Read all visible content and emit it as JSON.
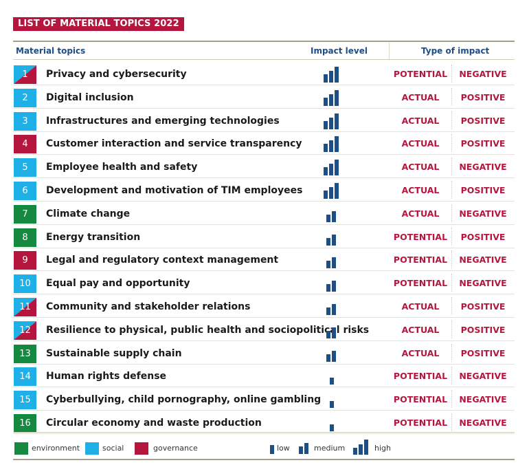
{
  "title": "LIST OF MATERIAL TOPICS 2022",
  "headers": {
    "topics": "Material topics",
    "impact_level": "Impact level",
    "type_of_impact": "Type of impact"
  },
  "colors": {
    "environment": "#15893f",
    "social": "#1eb0e6",
    "governance": "#b5163d",
    "accent_red": "#b5163d",
    "accent_blue": "#1e4e86"
  },
  "rows": [
    {
      "num": "1",
      "topic": "Privacy and cybersecurity",
      "category": "social/governance",
      "level": "high",
      "type1": "POTENTIAL",
      "type2": "NEGATIVE"
    },
    {
      "num": "2",
      "topic": "Digital inclusion",
      "category": "social",
      "level": "high",
      "type1": "ACTUAL",
      "type2": "POSITIVE"
    },
    {
      "num": "3",
      "topic": "Infrastructures and emerging technologies",
      "category": "social",
      "level": "high",
      "type1": "ACTUAL",
      "type2": "POSITIVE"
    },
    {
      "num": "4",
      "topic": "Customer interaction and service transparency",
      "category": "governance",
      "level": "high",
      "type1": "ACTUAL",
      "type2": "POSITIVE"
    },
    {
      "num": "5",
      "topic": "Employee health and safety",
      "category": "social",
      "level": "high",
      "type1": "ACTUAL",
      "type2": "NEGATIVE"
    },
    {
      "num": "6",
      "topic": "Development and motivation of TIM employees",
      "category": "social",
      "level": "high",
      "type1": "ACTUAL",
      "type2": "POSITIVE"
    },
    {
      "num": "7",
      "topic": "Climate change",
      "category": "environment",
      "level": "medium",
      "type1": "ACTUAL",
      "type2": "NEGATIVE"
    },
    {
      "num": "8",
      "topic": "Energy transition",
      "category": "environment",
      "level": "medium",
      "type1": "POTENTIAL",
      "type2": "POSITIVE"
    },
    {
      "num": "9",
      "topic": "Legal and regulatory context management",
      "category": "governance",
      "level": "medium",
      "type1": "POTENTIAL",
      "type2": "NEGATIVE"
    },
    {
      "num": "10",
      "topic": "Equal pay and opportunity",
      "category": "social",
      "level": "medium",
      "type1": "POTENTIAL",
      "type2": "NEGATIVE"
    },
    {
      "num": "11",
      "topic": "Community and stakeholder relations",
      "category": "social/governance",
      "level": "medium",
      "type1": "ACTUAL",
      "type2": "POSITIVE"
    },
    {
      "num": "12",
      "topic": "Resilience to physical, public health and sociopolitical risks",
      "category": "social/governance",
      "level": "medium",
      "type1": "ACTUAL",
      "type2": "POSITIVE"
    },
    {
      "num": "13",
      "topic": "Sustainable supply chain",
      "category": "environment",
      "level": "medium",
      "type1": "ACTUAL",
      "type2": "POSITIVE"
    },
    {
      "num": "14",
      "topic": "Human rights defense",
      "category": "social",
      "level": "low",
      "type1": "POTENTIAL",
      "type2": "NEGATIVE"
    },
    {
      "num": "15",
      "topic": "Cyberbullying, child pornography, online gambling",
      "category": "social",
      "level": "low",
      "type1": "POTENTIAL",
      "type2": "NEGATIVE"
    },
    {
      "num": "16",
      "topic": "Circular economy and waste production",
      "category": "environment",
      "level": "low",
      "type1": "POTENTIAL",
      "type2": "NEGATIVE"
    }
  ],
  "legend": {
    "environment": "environment",
    "social": "social",
    "governance": "governance",
    "low": "low",
    "medium": "medium",
    "high": "high"
  }
}
